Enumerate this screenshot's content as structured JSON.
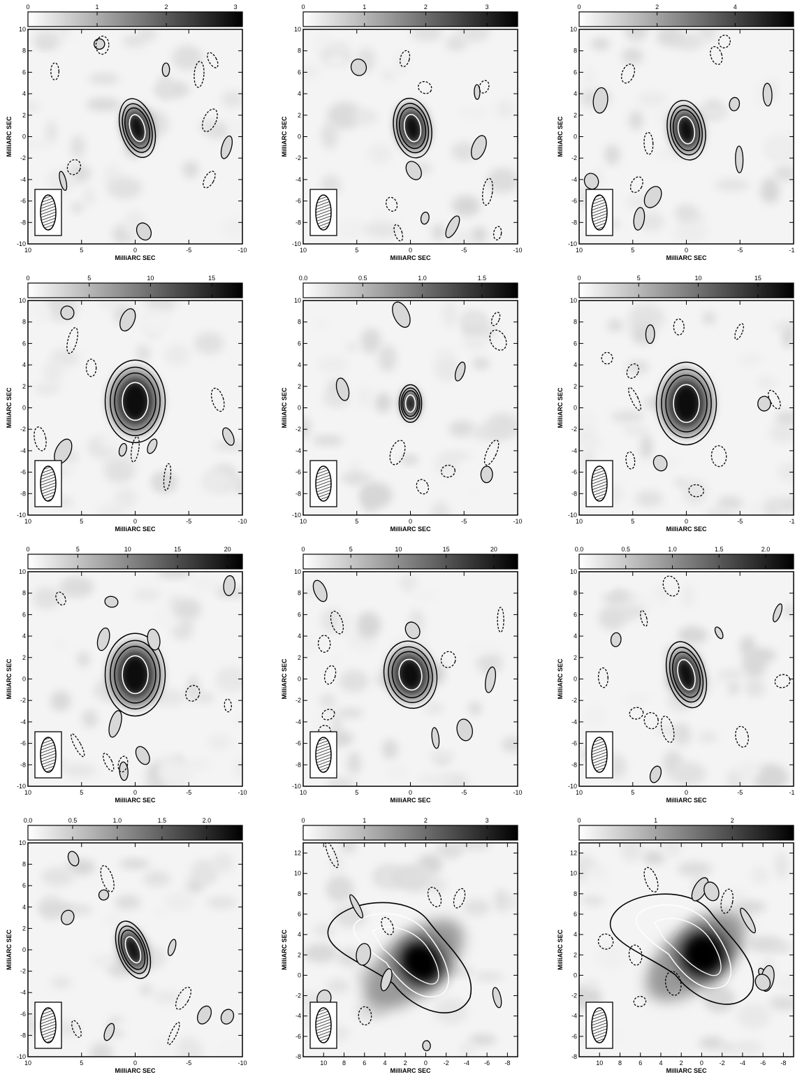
{
  "figure": {
    "axis_label": "MilliARC SEC",
    "panels": [
      {
        "id": "r1c1",
        "colorbar": {
          "ticks": [
            "0",
            "1",
            "2",
            "3"
          ],
          "max": 3.1
        },
        "xlim": [
          10,
          -10
        ],
        "ylim": [
          -10,
          10
        ],
        "xticks": [
          "10",
          "5",
          "0",
          "-5",
          "-10"
        ],
        "yticks": [
          "-10",
          "-8",
          "-6",
          "-4",
          "-2",
          "0",
          "2",
          "4",
          "6",
          "8",
          "10"
        ]
      },
      {
        "id": "r1c2",
        "colorbar": {
          "ticks": [
            "0",
            "1",
            "2",
            "3"
          ],
          "max": 3.5
        },
        "xlim": [
          10,
          -10
        ],
        "ylim": [
          -10,
          10
        ],
        "xticks": [
          "10",
          "5",
          "0",
          "-5",
          "-10"
        ],
        "yticks": [
          "-10",
          "-8",
          "-6",
          "-4",
          "-2",
          "0",
          "2",
          "4",
          "6",
          "8",
          "10"
        ]
      },
      {
        "id": "r1c3",
        "colorbar": {
          "ticks": [
            "0",
            "2",
            "4"
          ],
          "max": 5.5
        },
        "xlim": [
          10,
          -10
        ],
        "ylim": [
          -10,
          10
        ],
        "xticks": [
          "10",
          "5",
          "0",
          "-5",
          "-10"
        ],
        "yticks": [
          "-10",
          "-8",
          "-6",
          "-4",
          "-2",
          "0",
          "2",
          "4",
          "6",
          "8",
          "10"
        ]
      },
      {
        "id": "r2c1",
        "colorbar": {
          "ticks": [
            "0",
            "5",
            "10",
            "15"
          ],
          "max": 17.5
        },
        "xlim": [
          10,
          -10
        ],
        "ylim": [
          -10,
          10
        ],
        "xticks": [
          "10",
          "5",
          "0",
          "-5",
          "-10"
        ],
        "yticks": [
          "-10",
          "-8",
          "-6",
          "-4",
          "-2",
          "0",
          "2",
          "4",
          "6",
          "8",
          "10"
        ]
      },
      {
        "id": "r2c2",
        "colorbar": {
          "ticks": [
            "0.0",
            "0.5",
            "1.0",
            "1.5"
          ],
          "max": 1.8
        },
        "xlim": [
          10,
          -10
        ],
        "ylim": [
          -10,
          10
        ],
        "xticks": [
          "10",
          "5",
          "0",
          "-5",
          "-10"
        ],
        "yticks": [
          "-10",
          "-8",
          "-6",
          "-4",
          "-2",
          "0",
          "2",
          "4",
          "6",
          "8",
          "10"
        ]
      },
      {
        "id": "r2c3",
        "colorbar": {
          "ticks": [
            "0",
            "5",
            "10",
            "15"
          ],
          "max": 18
        },
        "xlim": [
          10,
          -10
        ],
        "ylim": [
          -10,
          10
        ],
        "xticks": [
          "10",
          "5",
          "0",
          "-5",
          "-10"
        ],
        "yticks": [
          "-10",
          "-8",
          "-6",
          "-4",
          "-2",
          "0",
          "2",
          "4",
          "6",
          "8",
          "10"
        ]
      },
      {
        "id": "r3c1",
        "colorbar": {
          "ticks": [
            "0",
            "5",
            "10",
            "15",
            "20"
          ],
          "max": 21.5
        },
        "xlim": [
          10,
          -10
        ],
        "ylim": [
          -10,
          10
        ],
        "xticks": [
          "10",
          "5",
          "0",
          "-5",
          "-10"
        ],
        "yticks": [
          "-10",
          "-8",
          "-6",
          "-4",
          "-2",
          "0",
          "2",
          "4",
          "6",
          "8",
          "10"
        ]
      },
      {
        "id": "r3c2",
        "colorbar": {
          "ticks": [
            "0",
            "5",
            "10",
            "15",
            "20"
          ],
          "max": 22.5
        },
        "xlim": [
          10,
          -10
        ],
        "ylim": [
          -10,
          10
        ],
        "xticks": [
          "10",
          "5",
          "0",
          "-5",
          "-10"
        ],
        "yticks": [
          "-10",
          "-8",
          "-6",
          "-4",
          "-2",
          "0",
          "2",
          "4",
          "6",
          "8",
          "10"
        ]
      },
      {
        "id": "r3c3",
        "colorbar": {
          "ticks": [
            "0.0",
            "0.5",
            "1.0",
            "1.5",
            "2.0"
          ],
          "max": 2.3
        },
        "xlim": [
          10,
          -10
        ],
        "ylim": [
          -10,
          10
        ],
        "xticks": [
          "10",
          "5",
          "0",
          "-5",
          "-10"
        ],
        "yticks": [
          "-10",
          "-8",
          "-6",
          "-4",
          "-2",
          "0",
          "2",
          "4",
          "6",
          "8",
          "10"
        ]
      },
      {
        "id": "r4c1",
        "colorbar": {
          "ticks": [
            "0.0",
            "0.5",
            "1.0",
            "1.5",
            "2.0"
          ],
          "max": 2.4
        },
        "xlim": [
          10,
          -10
        ],
        "ylim": [
          -10,
          10
        ],
        "xticks": [
          "10",
          "5",
          "0",
          "-5",
          "-10"
        ],
        "yticks": [
          "-10",
          "-8",
          "-6",
          "-4",
          "-2",
          "0",
          "2",
          "4",
          "6",
          "8",
          "10"
        ]
      },
      {
        "id": "r4c2",
        "colorbar": {
          "ticks": [
            "0",
            "1",
            "2",
            "3"
          ],
          "max": 3.5
        },
        "xlim": [
          12,
          -9
        ],
        "ylim": [
          -8,
          13
        ],
        "xticks": [
          "10",
          "8",
          "6",
          "4",
          "2",
          "0",
          "-2",
          "-4",
          "-6",
          "-8"
        ],
        "yticks": [
          "-8",
          "-6",
          "-4",
          "-2",
          "0",
          "2",
          "4",
          "6",
          "8",
          "10",
          "12"
        ]
      },
      {
        "id": "r4c3",
        "colorbar": {
          "ticks": [
            "0",
            "1",
            "2"
          ],
          "max": 2.8
        },
        "xlim": [
          12,
          -9
        ],
        "ylim": [
          -8,
          13
        ],
        "xticks": [
          "10",
          "8",
          "6",
          "4",
          "2",
          "0",
          "-2",
          "-4",
          "-6",
          "-8"
        ],
        "yticks": [
          "-8",
          "-6",
          "-4",
          "-2",
          "0",
          "2",
          "4",
          "6",
          "8",
          "10",
          "12"
        ]
      }
    ]
  }
}
